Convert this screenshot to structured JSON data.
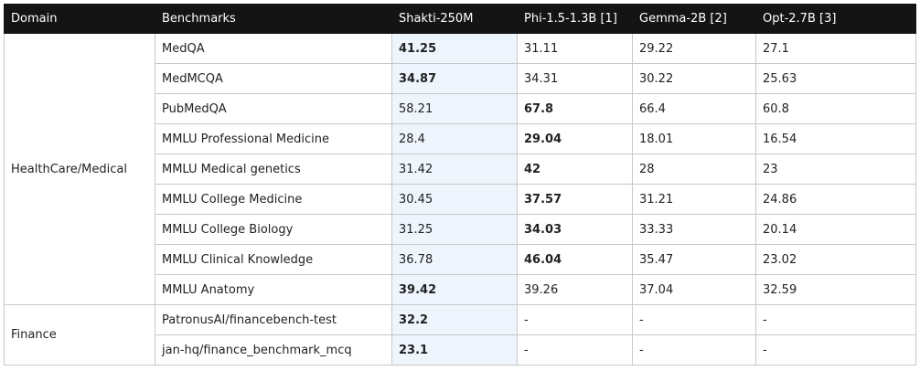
{
  "table": {
    "header": [
      "Domain",
      "Benchmarks",
      "Shakti-250M",
      "Phi-1.5-1.3B [1]",
      "Gemma-2B [2]",
      "Opt-2.7B [3]"
    ],
    "highlight_column": 0,
    "groups": [
      {
        "domain": "HealthCare/Medical",
        "rows": [
          {
            "benchmark": "MedQA",
            "values": [
              "41.25",
              "31.11",
              "29.22",
              "27.1"
            ],
            "bold": 0
          },
          {
            "benchmark": "MedMCQA",
            "values": [
              "34.87",
              "34.31",
              "30.22",
              "25.63"
            ],
            "bold": 0
          },
          {
            "benchmark": "PubMedQA",
            "values": [
              "58.21",
              "67.8",
              "66.4",
              "60.8"
            ],
            "bold": 1
          },
          {
            "benchmark": "MMLU Professional Medicine",
            "values": [
              "28.4",
              "29.04",
              "18.01",
              "16.54"
            ],
            "bold": 1
          },
          {
            "benchmark": "MMLU Medical genetics",
            "values": [
              "31.42",
              "42",
              "28",
              "23"
            ],
            "bold": 1
          },
          {
            "benchmark": "MMLU College Medicine",
            "values": [
              "30.45",
              "37.57",
              "31.21",
              "24.86"
            ],
            "bold": 1
          },
          {
            "benchmark": "MMLU College Biology",
            "values": [
              "31.25",
              "34.03",
              "33.33",
              "20.14"
            ],
            "bold": 1
          },
          {
            "benchmark": "MMLU Clinical Knowledge",
            "values": [
              "36.78",
              "46.04",
              "35.47",
              "23.02"
            ],
            "bold": 1
          },
          {
            "benchmark": "MMLU Anatomy",
            "values": [
              "39.42",
              "39.26",
              "37.04",
              "32.59"
            ],
            "bold": 0
          }
        ]
      },
      {
        "domain": "Finance",
        "rows": [
          {
            "benchmark": "PatronusAI/financebench-test",
            "values": [
              "32.2",
              "-",
              "-",
              "-"
            ],
            "bold": 0
          },
          {
            "benchmark": "jan-hq/finance_benchmark_mcq",
            "values": [
              "23.1",
              "-",
              "-",
              "-"
            ],
            "bold": 0
          }
        ]
      }
    ]
  }
}
